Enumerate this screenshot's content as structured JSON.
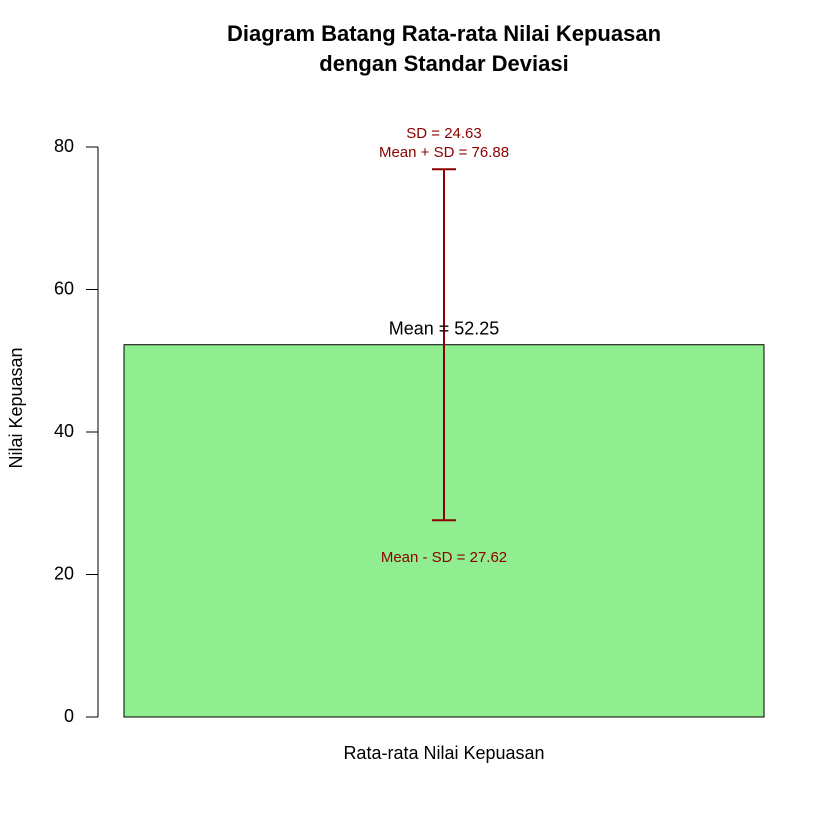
{
  "chart_data": {
    "type": "bar",
    "title": [
      "Diagram Batang Rata-rata Nilai Kepuasan",
      "dengan Standar Deviasi"
    ],
    "y_label": "Nilai Kepuasan",
    "categories": [
      "Rata-rata Nilai Kepuasan"
    ],
    "values": [
      52.25
    ],
    "value_labels": [
      "Mean = 52.25"
    ],
    "errors": [
      24.63
    ],
    "error_labels": [
      "SD = 24.63"
    ],
    "annotations": [
      {
        "text": "Mean + SD = 76.88",
        "value": 76.88
      },
      {
        "text": "Mean - SD = 27.62",
        "value": 27.62
      }
    ],
    "color": "#90ee90",
    "error_color": "#8b0000",
    "ylim": [
      0,
      80
    ],
    "yticks": [
      0,
      20,
      40,
      60,
      80
    ]
  }
}
